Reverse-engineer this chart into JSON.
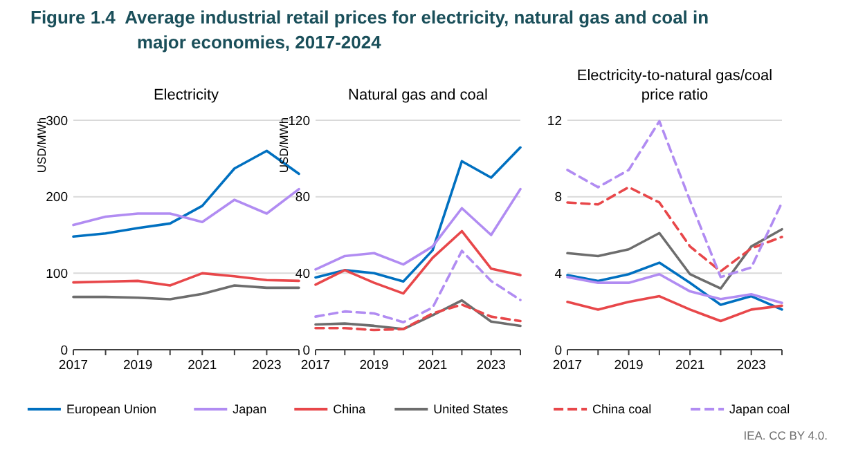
{
  "chart_data": [
    {
      "type": "line",
      "title": "Electricity",
      "ylabel": "USD/MWh",
      "annotations": [
        "Figure 1.4  Average industrial retail prices for electricity, natural gas and coal in major economies, 2017-2024"
      ],
      "x": [
        2017,
        2018,
        2019,
        2020,
        2021,
        2022,
        2023,
        2024
      ],
      "xlim": [
        2017,
        2024
      ],
      "xticks": [
        2017,
        {
          "value": 2018,
          "label": null
        },
        2019,
        {
          "value": 2020,
          "label": null
        },
        2021,
        {
          "value": 2022,
          "label": null
        },
        2023,
        {
          "value": 2024,
          "label": null
        }
      ],
      "ylim": [
        0,
        300
      ],
      "yticks": [
        0,
        100,
        200,
        300
      ],
      "grid": "y",
      "marker": "none",
      "series": [
        {
          "color": "#0070c0",
          "values": [
            148,
            152,
            159,
            165,
            188,
            237,
            260,
            230
          ]
        },
        {
          "color": "#b18cf2",
          "values": [
            163,
            174,
            178,
            178,
            167,
            196,
            178,
            210
          ]
        },
        {
          "color": "#e8474a",
          "values": [
            88,
            89,
            90,
            84,
            100,
            96,
            91,
            90
          ]
        },
        {
          "color": "#6d6d6d",
          "values": [
            69,
            69,
            68,
            66,
            73,
            84,
            81,
            81
          ]
        }
      ]
    },
    {
      "type": "line",
      "title": "Natural gas and coal",
      "ylabel": "USD/MWh",
      "legend": "bottom",
      "x": [
        2017,
        2018,
        2019,
        2020,
        2021,
        2022,
        2023,
        2024
      ],
      "xlim": [
        2017,
        2024
      ],
      "xticks": [
        2017,
        {
          "value": 2018,
          "label": null
        },
        2019,
        {
          "value": 2020,
          "label": null
        },
        2021,
        {
          "value": 2022,
          "label": null
        },
        2023,
        {
          "value": 2024,
          "label": null
        }
      ],
      "ylim": [
        0,
        120
      ],
      "yticks": [
        0,
        40,
        80,
        120
      ],
      "grid": "y",
      "marker": "none",
      "series": [
        {
          "name": "European Union",
          "color": "#0070c0",
          "values": [
            37.8,
            41.6,
            40,
            35.7,
            52,
            98.6,
            90,
            105.8
          ]
        },
        {
          "name": "Japan",
          "color": "#b18cf2",
          "values": [
            42,
            49,
            50.5,
            44.6,
            54,
            74,
            60,
            84
          ]
        },
        {
          "name": "China",
          "color": "#e8474a",
          "values": [
            34,
            41.6,
            35,
            29.4,
            48,
            62,
            42.4,
            39
          ]
        },
        {
          "name": "United States",
          "color": "#6d6d6d",
          "values": [
            13.2,
            13.7,
            12.5,
            10.8,
            18,
            25.8,
            14.7,
            12.5
          ]
        },
        {
          "name": "China coal",
          "color": "#e8474a",
          "line_style": "dashed",
          "values": [
            11.3,
            11.3,
            10.3,
            10.8,
            19,
            23.6,
            17.3,
            15
          ]
        },
        {
          "name": "Japan coal",
          "color": "#b18cf2",
          "line_style": "dashed",
          "values": [
            17.3,
            20,
            19,
            14.4,
            22,
            51.7,
            36,
            26
          ]
        }
      ]
    },
    {
      "type": "line",
      "title": "Electricity-to-natural gas/coal price ratio",
      "annotations": [
        "IEA. CC BY 4.0."
      ],
      "x": [
        2017,
        2018,
        2019,
        2020,
        2021,
        2022,
        2023,
        2024
      ],
      "xlim": [
        2017,
        2024
      ],
      "xticks": [
        2017,
        {
          "value": 2018,
          "label": null
        },
        2019,
        {
          "value": 2020,
          "label": null
        },
        2021,
        {
          "value": 2022,
          "label": null
        },
        2023,
        {
          "value": 2024,
          "label": null
        }
      ],
      "ylim": [
        0,
        12
      ],
      "yticks": [
        0,
        4,
        8,
        12
      ],
      "grid": "y",
      "marker": "none",
      "series": [
        {
          "color": "#0070c0",
          "values": [
            3.9,
            3.6,
            3.95,
            4.55,
            3.5,
            2.35,
            2.8,
            2.1
          ]
        },
        {
          "color": "#b18cf2",
          "values": [
            3.8,
            3.5,
            3.5,
            3.95,
            3.05,
            2.65,
            2.9,
            2.45
          ]
        },
        {
          "color": "#e8474a",
          "values": [
            2.5,
            2.1,
            2.5,
            2.8,
            2.1,
            1.5,
            2.1,
            2.3
          ]
        },
        {
          "color": "#6d6d6d",
          "values": [
            5.05,
            4.9,
            5.25,
            6.1,
            3.95,
            3.2,
            5.4,
            6.3
          ]
        },
        {
          "color": "#e8474a",
          "line_style": "dashed",
          "values": [
            7.7,
            7.6,
            8.5,
            7.7,
            5.4,
            4.1,
            5.3,
            5.9
          ]
        },
        {
          "color": "#b18cf2",
          "line_style": "dashed",
          "values": [
            9.4,
            8.5,
            9.4,
            11.95,
            7.8,
            3.8,
            4.3,
            7.7
          ]
        }
      ]
    }
  ]
}
